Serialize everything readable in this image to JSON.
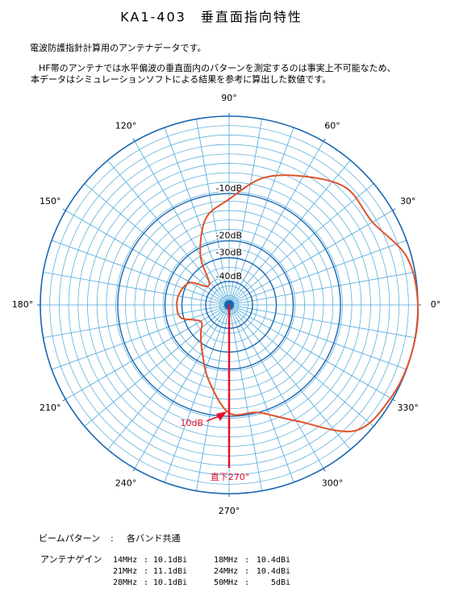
{
  "header": {
    "title": "KA1-403　垂直面指向特性",
    "subtitle": "電波防護指針計算用のアンテナデータです。",
    "notes": [
      "HF帯のアンテナでは水平偏波の垂直面内のパターンを測定するのは事実上不可能なため、",
      "本データはシミュレーションソフトによる結果を参考に算出した数値です。"
    ]
  },
  "chart_data": {
    "type": "polar",
    "x": [
      0,
      15,
      30,
      45,
      60,
      75,
      90,
      105,
      120,
      135,
      150,
      165,
      180,
      195,
      210,
      225,
      240,
      255,
      270,
      285,
      300,
      315,
      330,
      345
    ],
    "series": [
      {
        "color": "#e0532b",
        "values": [
          0,
          -0.6,
          -3,
          -3,
          -5.2,
          -7.4,
          -11.2,
          -14.6,
          -24,
          -38,
          -31,
          -28,
          -27,
          -28.5,
          -36,
          -33,
          -26,
          -17,
          -10.7,
          -10,
          -7.1,
          -1.4,
          -0.3,
          0
        ]
      }
    ],
    "rlim": [
      -50,
      0
    ],
    "rticks": [
      {
        "value": -10,
        "label": "-10dB"
      },
      {
        "value": -20,
        "label": "-20dB"
      },
      {
        "value": -30,
        "label": "-30dB"
      },
      {
        "value": -40,
        "label": "-40dB"
      }
    ],
    "xticks": [
      {
        "value": 0,
        "label": "0°"
      },
      {
        "value": 30,
        "label": "30°"
      },
      {
        "value": 60,
        "label": "60°"
      },
      {
        "value": 90,
        "label": "90°"
      },
      {
        "value": 120,
        "label": "120°"
      },
      {
        "value": 150,
        "label": "150°"
      },
      {
        "value": 180,
        "label": "180°"
      },
      {
        "value": 210,
        "label": "210°"
      },
      {
        "value": 240,
        "label": "240°"
      },
      {
        "value": 270,
        "label": "270°"
      },
      {
        "value": 300,
        "label": "300°"
      },
      {
        "value": 330,
        "label": "330°"
      }
    ],
    "grid": true,
    "annotations": [
      "10dB",
      "直下270°"
    ]
  },
  "info": {
    "beam_label": "ビームパターン",
    "separator": ":",
    "beam_value": "各バンド共通",
    "gain_label": "アンテナゲイン",
    "gain_rows": [
      [
        "14MHz",
        "10.1dBi",
        "18MHz",
        "10.4dBi"
      ],
      [
        "21MHz",
        "11.1dBi",
        "24MHz",
        "10.4dBi"
      ],
      [
        "28MHz",
        "10.1dBi",
        "50MHz",
        "5dBi"
      ]
    ]
  }
}
